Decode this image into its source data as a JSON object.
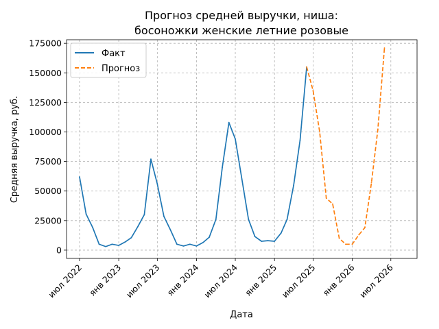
{
  "chart_data": {
    "type": "line",
    "title_lines": [
      "Прогноз средней выручки, ниша:",
      "босоножки женские летние розовые"
    ],
    "xlabel": "Дата",
    "ylabel": "Средняя выручка, руб.",
    "ylim": [
      -7000,
      178000
    ],
    "xlim": [
      "2022-05-01",
      "2026-11-01"
    ],
    "grid": true,
    "legend_position": "top-left",
    "y_ticks": [
      0,
      25000,
      50000,
      75000,
      100000,
      125000,
      150000,
      175000
    ],
    "x_ticks": [
      {
        "date": "2022-07-01",
        "label": "июл 2022"
      },
      {
        "date": "2023-01-01",
        "label": "янв 2023"
      },
      {
        "date": "2023-07-01",
        "label": "июл 2023"
      },
      {
        "date": "2024-01-01",
        "label": "янв 2024"
      },
      {
        "date": "2024-07-01",
        "label": "июл 2024"
      },
      {
        "date": "2025-01-01",
        "label": "янв 2025"
      },
      {
        "date": "2025-07-01",
        "label": "июл 2025"
      },
      {
        "date": "2026-01-01",
        "label": "янв 2026"
      },
      {
        "date": "2026-07-01",
        "label": "июл 2026"
      }
    ],
    "series": [
      {
        "name": "Факт",
        "color": "#1f77b4",
        "style": "solid",
        "x": [
          "2022-07-01",
          "2022-08-01",
          "2022-09-01",
          "2022-10-01",
          "2022-11-01",
          "2022-12-01",
          "2023-01-01",
          "2023-02-01",
          "2023-03-01",
          "2023-04-01",
          "2023-05-01",
          "2023-06-01",
          "2023-07-01",
          "2023-08-01",
          "2023-09-01",
          "2023-10-01",
          "2023-11-01",
          "2023-12-01",
          "2024-01-01",
          "2024-02-01",
          "2024-03-01",
          "2024-04-01",
          "2024-05-01",
          "2024-06-01",
          "2024-07-01",
          "2024-08-01",
          "2024-09-01",
          "2024-10-01",
          "2024-11-01",
          "2024-12-01",
          "2025-01-01",
          "2025-02-01",
          "2025-03-01",
          "2025-04-01",
          "2025-05-01",
          "2025-06-01"
        ],
        "y": [
          62000,
          30500,
          19000,
          5000,
          3000,
          5000,
          4000,
          7000,
          10500,
          20000,
          30000,
          77000,
          56000,
          28500,
          17000,
          5000,
          3500,
          5000,
          3500,
          6500,
          11000,
          26000,
          70000,
          108000,
          94000,
          60000,
          26000,
          11500,
          7500,
          8000,
          7500,
          14500,
          26000,
          55000,
          93000,
          155000
        ]
      },
      {
        "name": "Прогноз",
        "color": "#ff7f0e",
        "style": "dashed",
        "x": [
          "2025-06-01",
          "2025-07-01",
          "2025-08-01",
          "2025-09-01",
          "2025-10-01",
          "2025-11-01",
          "2025-12-01",
          "2026-01-01",
          "2026-02-01",
          "2026-03-01",
          "2026-04-01",
          "2026-05-01",
          "2026-06-01"
        ],
        "y": [
          155000,
          135000,
          100000,
          44000,
          39000,
          10000,
          5000,
          5000,
          13000,
          19000,
          57000,
          102000,
          171000
        ]
      }
    ]
  }
}
